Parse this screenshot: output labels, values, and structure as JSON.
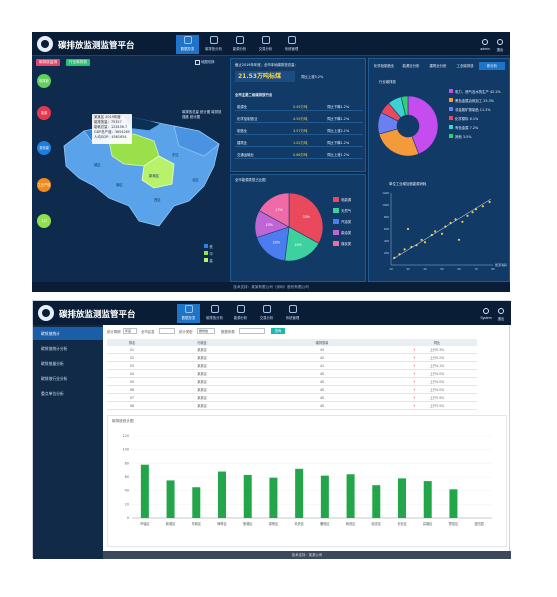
{
  "app": {
    "title": "碳排放监测监管平台",
    "nav": [
      {
        "label": "数据总览",
        "active": true
      },
      {
        "label": "碳排放分析",
        "active": false
      },
      {
        "label": "能源分析",
        "active": false
      },
      {
        "label": "交易分析",
        "active": false
      },
      {
        "label": "系统管理",
        "active": false
      }
    ],
    "user": {
      "label": "admin"
    },
    "logout": {
      "label": "退出"
    }
  },
  "dashboard": {
    "buttons": {
      "btn_a": "碳排放监测",
      "btn_b": "行业碳排放"
    },
    "map_toggle": "地图切换",
    "circles": [
      "碳排放",
      "能源",
      "发电量",
      "工业产值",
      "人口"
    ],
    "tooltip": [
      "某某区 2019年度",
      "碳排放量：75357",
      "能耗总量：123456.7",
      "GDP总产值：3654265",
      "人均GDP：4561654"
    ],
    "map_note": "碳排放总量 统计图 碳排放强度 统计图",
    "map_legend": [
      "低",
      "中",
      "高"
    ],
    "region_labels": [
      "城区",
      "东区",
      "西区",
      "北区",
      "南区",
      "新城区"
    ],
    "kpi": {
      "title": "截止2019年年底，全市本地碳排放总量：",
      "value": "21.53万吨标煤",
      "change": "同比上涨3.2%"
    },
    "industry_title": "全市主要二级碳排放行业",
    "industry_rows": [
      {
        "name": "能源业",
        "value": "5.45万吨",
        "change": "同比下降1.2%"
      },
      {
        "name": "化学品制造业",
        "value": "4.59万吨",
        "change": "同比下降1.2%"
      },
      {
        "name": "制造业",
        "value": "3.57万吨",
        "change": "同比上涨2.1%"
      },
      {
        "name": "建筑业",
        "value": "1.02万吨",
        "change": "同比下降1.2%"
      },
      {
        "name": "交通运输业",
        "value": "0.86万吨",
        "change": "同比上涨1.2%"
      }
    ],
    "tabs": [
      "化学品制造业",
      "能源业分析",
      "建筑业分析",
      "工业碳排放",
      "新分析"
    ],
    "pie1": {
      "title": "行业碳排放",
      "legend": [
        "电力、燃气及水的生产 42.2%",
        "黑色金属冶炼加工 25.3%",
        "非金属矿物制品 11.2%",
        "化学原料 6.1%",
        "有色金属 7.2%",
        "其他 3.5%"
      ],
      "colors": [
        "#c54df0",
        "#f39a3a",
        "#6a7ff0",
        "#e9485d",
        "#3dd1d6",
        "#2fd06f"
      ],
      "values": [
        42.2,
        25.3,
        11.2,
        6.1,
        7.2,
        3.5
      ]
    },
    "pie2": {
      "title": "全市能源类型占比图",
      "legend": [
        "电能源",
        "天然气",
        "汽油类",
        "柴油类",
        "煤炭类"
      ],
      "colors": [
        "#e9485d",
        "#3dd1a0",
        "#4b7cf0",
        "#c065d6",
        "#f06aa8"
      ],
      "values": [
        33,
        19,
        18,
        13,
        17
      ],
      "labels": [
        "33%",
        "19%",
        "18%",
        "13%",
        "17%"
      ]
    },
    "scatter": {
      "title": "单位工业增加值能源消耗",
      "xlabel": "能源消耗",
      "x_ticks": [
        "20",
        "30",
        "40",
        "50",
        "60",
        "70",
        "80"
      ],
      "y_ticks": [
        "200",
        "400",
        "600",
        "800",
        "1000",
        "1200"
      ],
      "points": [
        [
          22,
          120
        ],
        [
          25,
          180
        ],
        [
          28,
          260
        ],
        [
          32,
          300
        ],
        [
          35,
          330
        ],
        [
          38,
          420
        ],
        [
          40,
          380
        ],
        [
          44,
          500
        ],
        [
          46,
          560
        ],
        [
          50,
          520
        ],
        [
          52,
          640
        ],
        [
          55,
          700
        ],
        [
          58,
          760
        ],
        [
          62,
          720
        ],
        [
          65,
          820
        ],
        [
          68,
          880
        ],
        [
          70,
          930
        ],
        [
          74,
          980
        ],
        [
          78,
          1050
        ],
        [
          30,
          600
        ],
        [
          60,
          420
        ]
      ]
    },
    "footer": "技术支持：某某有限公司（深圳）股份有限公司"
  },
  "list_page": {
    "sidebar": [
      "碳排放统计",
      "碳排放统计分析",
      "碳排放量分析",
      "碳排放行业分析",
      "重点单位分析"
    ],
    "filters": [
      "统计周期",
      "年度",
      "全市区县",
      "统计类型",
      "碳排放",
      "数据来源",
      "查询"
    ],
    "user_label": "System",
    "logout_label": "退出",
    "columns": [
      "排名",
      "行政区",
      "碳排放量",
      "同比"
    ],
    "rows": [
      {
        "rank": "01",
        "region": "某某区",
        "value": "43",
        "trend": "上升5.3%"
      },
      {
        "rank": "02",
        "region": "某某区",
        "value": "42",
        "trend": "上升5.2%"
      },
      {
        "rank": "03",
        "region": "某某区",
        "value": "41",
        "trend": "上升4.1%"
      },
      {
        "rank": "04",
        "region": "某某区",
        "value": "40",
        "trend": "上升4.0%"
      },
      {
        "rank": "05",
        "region": "某某区",
        "value": "40",
        "trend": "上升4.0%"
      },
      {
        "rank": "06",
        "region": "某某区",
        "value": "40",
        "trend": "上升4.0%"
      },
      {
        "rank": "07",
        "region": "某某区",
        "value": "40",
        "trend": "上升3.9%"
      },
      {
        "rank": "08",
        "region": "某某区",
        "value": "40",
        "trend": "上升3.5%"
      }
    ],
    "chart_title": "碳排放统计图",
    "footer": "技术支持：某某公司"
  },
  "chart_data": [
    {
      "type": "bar",
      "title": "碳排放统计图",
      "categories": [
        "市辖区",
        "新城区",
        "东城区",
        "碑林区",
        "莲湖区",
        "灞桥区",
        "未央区",
        "雁塔区",
        "阎良区",
        "临潼区",
        "长安区",
        "高陵区",
        "鄠邑区",
        "蓝田县"
      ],
      "values": [
        78,
        55,
        45,
        68,
        63,
        59,
        72,
        62,
        64,
        48,
        58,
        54,
        42,
        0
      ],
      "ylim": [
        0,
        120
      ],
      "y_ticks": [
        "0",
        "20",
        "40",
        "60",
        "80",
        "100",
        "120"
      ],
      "ylabel": "",
      "xlabel": ""
    }
  ]
}
